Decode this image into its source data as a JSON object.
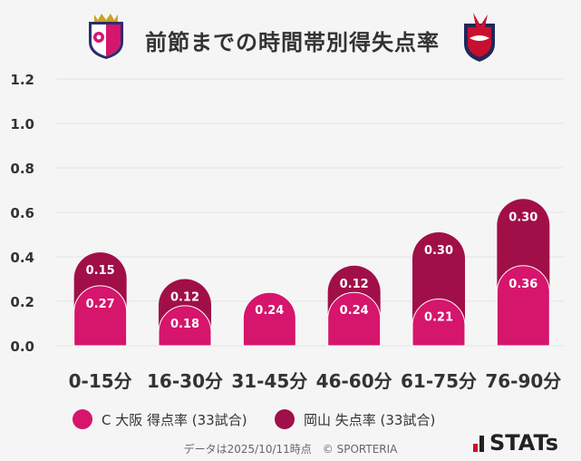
{
  "title": "前節までの時間帯別得失点率",
  "colors": {
    "scored": "#d6156c",
    "conceded": "#a10f48",
    "grid": "#e2e2e2",
    "text": "#333333"
  },
  "icons": {
    "left_logo": "cerezo-osaka-crest-icon",
    "right_logo": "fagiano-okayama-crest-icon"
  },
  "legend": {
    "scored_label": "C 大阪 得点率 (33試合)",
    "conceded_label": "岡山 失点率 (33試合)"
  },
  "footer": "データは2025/10/11時点　© SPORTERIA",
  "brand": "STATs",
  "chart_data": {
    "type": "bar",
    "title": "前節までの時間帯別得失点率",
    "categories": [
      "0-15分",
      "16-30分",
      "31-45分",
      "46-60分",
      "61-75分",
      "76-90分"
    ],
    "series": [
      {
        "name": "C 大阪 得点率 (33試合)",
        "values": [
          0.27,
          0.18,
          0.24,
          0.24,
          0.21,
          0.36
        ]
      },
      {
        "name": "岡山 失点率 (33試合)",
        "values": [
          0.15,
          0.12,
          null,
          0.12,
          0.3,
          0.3
        ]
      }
    ],
    "yticks": [
      "0.0",
      "0.2",
      "0.4",
      "0.6",
      "0.8",
      "1.0",
      "1.2"
    ],
    "ylim": [
      0,
      1.2
    ],
    "xlabel": "",
    "ylabel": "",
    "grid": true,
    "legend_position": "bottom"
  }
}
